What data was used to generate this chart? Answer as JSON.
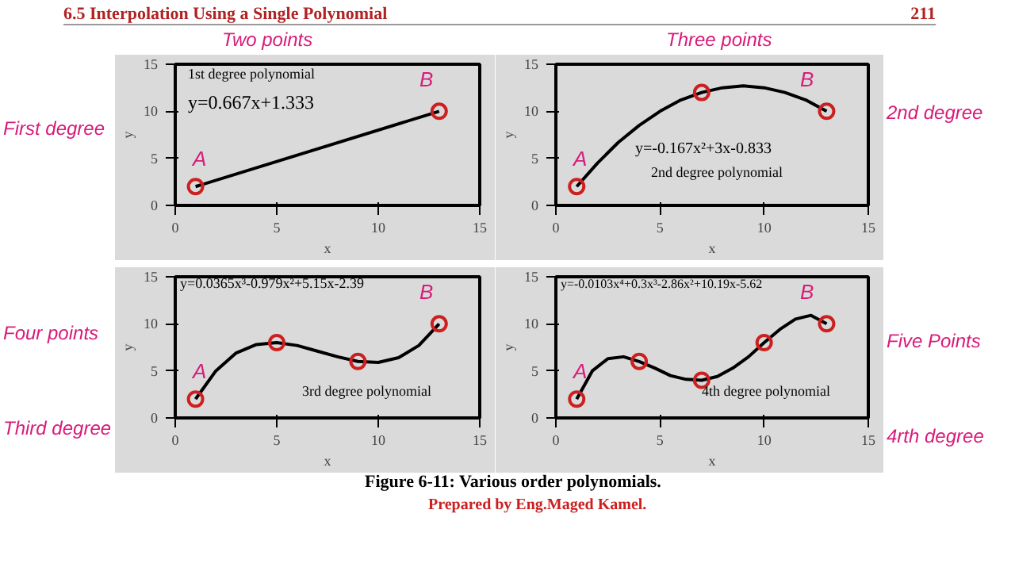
{
  "chart_data": [
    {
      "type": "line",
      "xlabel": "x",
      "ylabel": "y",
      "xlim": [
        0,
        15
      ],
      "ylim": [
        0,
        15
      ],
      "xticks": [
        0,
        5,
        10,
        15
      ],
      "yticks": [
        0,
        5,
        10,
        15
      ],
      "annotations": [
        "1st degree polynomial",
        "y=0.667x+1.333",
        "Two points",
        "First degree",
        "6.5 Interpolation Using a Single Polynomial",
        "211",
        "A",
        "B"
      ],
      "series": [
        {
          "type": "line",
          "color": "#000000",
          "line_style": "solid",
          "x": [
            1,
            13
          ],
          "values": [
            2,
            10
          ]
        },
        {
          "type": "scatter",
          "marker": "circle",
          "color": "#cc1f1f",
          "x": [
            1,
            13
          ],
          "values": [
            2,
            10
          ]
        }
      ]
    },
    {
      "type": "line",
      "xlabel": "x",
      "ylabel": "y",
      "xlim": [
        0,
        15
      ],
      "ylim": [
        0,
        15
      ],
      "xticks": [
        0,
        5,
        10,
        15
      ],
      "yticks": [
        0,
        5,
        10,
        15
      ],
      "annotations": [
        "y=-0.167x²+3x-0.833",
        "2nd degree polynomial",
        "Three points",
        "2nd degree",
        "A",
        "B"
      ],
      "series": [
        {
          "type": "line",
          "color": "#000000",
          "line_style": "solid",
          "x": [
            1,
            2,
            3,
            4,
            5,
            6,
            7,
            8,
            9,
            10,
            11,
            12,
            13
          ],
          "values": [
            2,
            4.5,
            6.7,
            8.5,
            10,
            11.2,
            12,
            12.5,
            12.7,
            12.5,
            12,
            11.2,
            10
          ]
        },
        {
          "type": "scatter",
          "marker": "circle",
          "color": "#cc1f1f",
          "x": [
            1,
            7,
            13
          ],
          "values": [
            2,
            12,
            10
          ]
        }
      ]
    },
    {
      "type": "line",
      "xlabel": "x",
      "ylabel": "y",
      "xlim": [
        0,
        15
      ],
      "ylim": [
        0,
        15
      ],
      "xticks": [
        0,
        5,
        10,
        15
      ],
      "yticks": [
        0,
        5,
        10,
        15
      ],
      "annotations": [
        "y=0.0365x³-0.979x²+5.15x-2.39",
        "3rd degree polynomial",
        "Four points",
        "Third degree",
        "Figure 6-11:  Various order polynomials.",
        "A",
        "B"
      ],
      "series": [
        {
          "type": "line",
          "color": "#000000",
          "line_style": "solid",
          "x": [
            1,
            2,
            3,
            4,
            5,
            6,
            7,
            8,
            9,
            10,
            11,
            12,
            13
          ],
          "values": [
            2,
            5.0,
            6.9,
            7.8,
            8,
            7.7,
            7.1,
            6.5,
            6,
            5.9,
            6.4,
            7.7,
            10
          ]
        },
        {
          "type": "scatter",
          "marker": "circle",
          "color": "#cc1f1f",
          "x": [
            1,
            5,
            9,
            13
          ],
          "values": [
            2,
            8,
            6,
            10
          ]
        }
      ]
    },
    {
      "type": "line",
      "xlabel": "x",
      "ylabel": "y",
      "xlim": [
        0,
        15
      ],
      "ylim": [
        0,
        15
      ],
      "xticks": [
        0,
        5,
        10,
        15
      ],
      "yticks": [
        0,
        5,
        10,
        15
      ],
      "annotations": [
        "y=-0.0103x⁴+0.3x³-2.86x²+10.19x-5.62",
        "4th degree polynomial",
        "Five Points",
        "4rth degree",
        "Prepared by Eng.Maged Kamel.",
        "A",
        "B"
      ],
      "series": [
        {
          "type": "line",
          "color": "#000000",
          "line_style": "solid",
          "x": [
            1,
            1.75,
            2.5,
            3.25,
            4,
            4.75,
            5.5,
            6.25,
            7,
            7.75,
            8.5,
            9.25,
            10,
            10.75,
            11.5,
            12.25,
            13
          ],
          "values": [
            2,
            5.0,
            6.3,
            6.5,
            6,
            5.3,
            4.5,
            4.1,
            4,
            4.4,
            5.3,
            6.5,
            8,
            9.4,
            10.5,
            10.9,
            10
          ]
        },
        {
          "type": "scatter",
          "marker": "circle",
          "color": "#cc1f1f",
          "x": [
            1,
            4,
            7,
            10,
            13
          ],
          "values": [
            2,
            6,
            4,
            8,
            10
          ]
        }
      ]
    }
  ]
}
